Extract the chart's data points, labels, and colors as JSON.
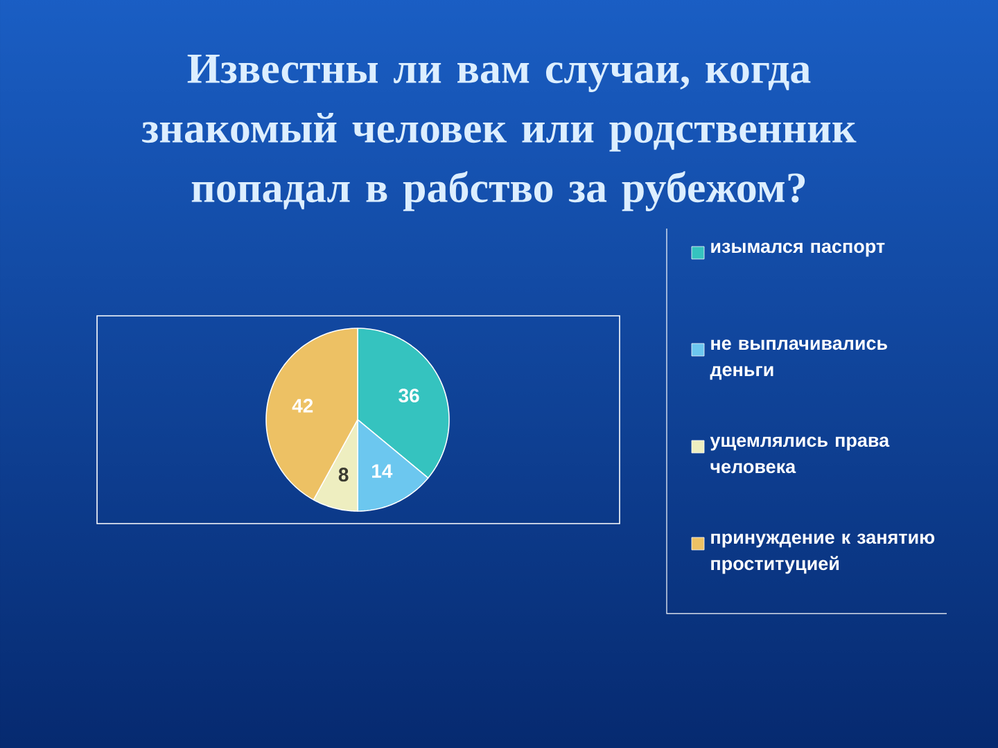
{
  "chart_data": {
    "type": "pie",
    "title": "Известны ли вам случаи, когда знакомый человек или родственник попадал в рабство за рубежом?",
    "categories": [
      "изымался паспорт",
      "не выплачивались деньги",
      "ущемлялись права человека",
      "принуждение к занятию проституцией"
    ],
    "values": [
      36,
      14,
      8,
      42
    ],
    "colors": [
      "#35c3bf",
      "#6cc7ef",
      "#eeeec0",
      "#edc164"
    ],
    "data_labels": true,
    "legend": "right"
  }
}
